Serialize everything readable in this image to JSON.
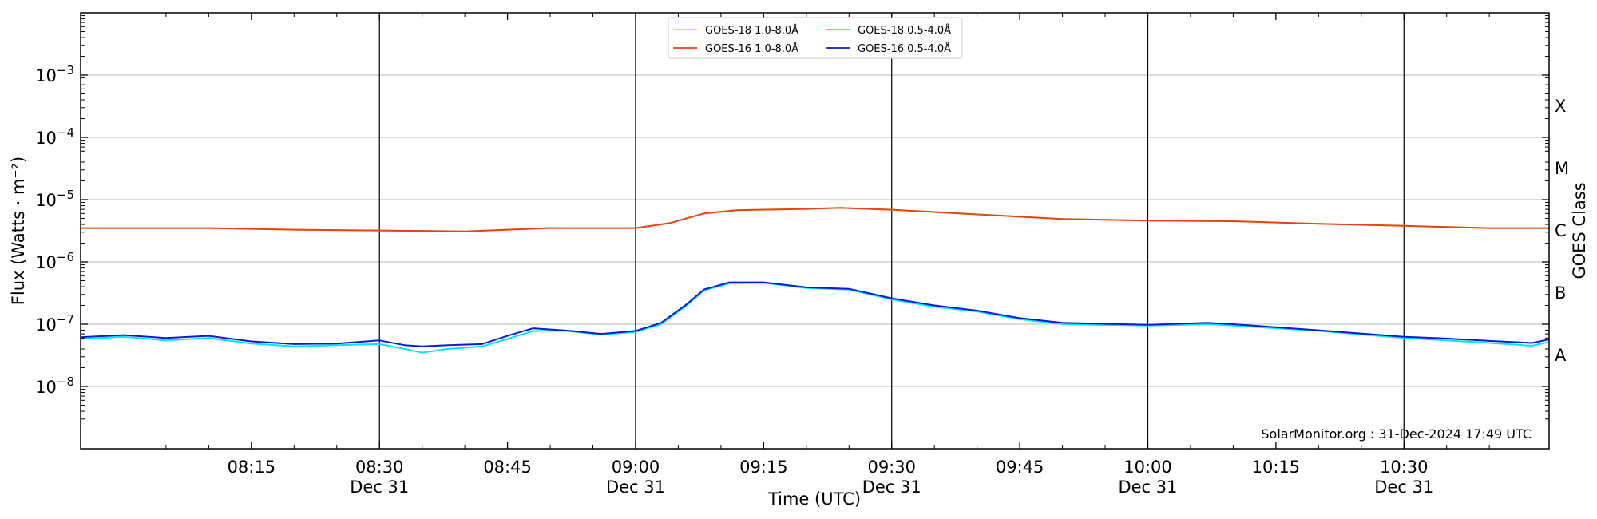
{
  "chart_data": {
    "type": "line",
    "title": "",
    "xlabel": "Time (UTC)",
    "ylabel": "Flux (Watts · m⁻²)",
    "y2label": "GOES Class",
    "yscale": "log",
    "ylim": [
      1e-09,
      0.01
    ],
    "xlim": [
      "07:55",
      "10:47"
    ],
    "grid": "horizontal",
    "legend_position": "top-center",
    "watermark": "SolarMonitor.org : 31-Dec-2024 17:49 UTC",
    "y_ticks": [
      {
        "value": 1e-08,
        "base": "10",
        "exp": "−8"
      },
      {
        "value": 1e-07,
        "base": "10",
        "exp": "−7"
      },
      {
        "value": 1e-06,
        "base": "10",
        "exp": "−6"
      },
      {
        "value": 1e-05,
        "base": "10",
        "exp": "−5"
      },
      {
        "value": 0.0001,
        "base": "10",
        "exp": "−4"
      },
      {
        "value": 0.001,
        "base": "10",
        "exp": "−3"
      }
    ],
    "class_labels": [
      {
        "label": "A",
        "value": 3.16e-08
      },
      {
        "label": "B",
        "value": 3.16e-07
      },
      {
        "label": "C",
        "value": 3.16e-06
      },
      {
        "label": "M",
        "value": 3.16e-05
      },
      {
        "label": "X",
        "value": 0.000316
      }
    ],
    "x_ticks": [
      {
        "time": "08:15",
        "label": "08:15",
        "date": ""
      },
      {
        "time": "08:30",
        "label": "08:30",
        "date": "Dec 31"
      },
      {
        "time": "08:45",
        "label": "08:45",
        "date": ""
      },
      {
        "time": "09:00",
        "label": "09:00",
        "date": "Dec 31"
      },
      {
        "time": "09:15",
        "label": "09:15",
        "date": ""
      },
      {
        "time": "09:30",
        "label": "09:30",
        "date": "Dec 31"
      },
      {
        "time": "09:45",
        "label": "09:45",
        "date": ""
      },
      {
        "time": "10:00",
        "label": "10:00",
        "date": "Dec 31"
      },
      {
        "time": "10:15",
        "label": "10:15",
        "date": ""
      },
      {
        "time": "10:30",
        "label": "10:30",
        "date": "Dec 31"
      }
    ],
    "vertical_lines": [
      "08:30",
      "09:00",
      "09:30",
      "10:00",
      "10:30"
    ],
    "series": [
      {
        "name": "GOES-18 1.0-8.0Å",
        "color": "#ffd700",
        "x": [
          "07:55",
          "08:05",
          "08:10",
          "08:20",
          "08:30",
          "08:40",
          "08:50",
          "09:00",
          "09:04",
          "09:08",
          "09:12",
          "09:20",
          "09:24",
          "09:30",
          "09:40",
          "09:50",
          "10:00",
          "10:10",
          "10:20",
          "10:30",
          "10:40",
          "10:47"
        ],
        "values": [
          3.5e-06,
          3.5e-06,
          3.5e-06,
          3.3e-06,
          3.2e-06,
          3.1e-06,
          3.5e-06,
          3.5e-06,
          4.2e-06,
          6e-06,
          6.8e-06,
          7.1e-06,
          7.4e-06,
          6.9e-06,
          5.8e-06,
          4.9e-06,
          4.6e-06,
          4.5e-06,
          4.1e-06,
          3.8e-06,
          3.5e-06,
          3.5e-06
        ]
      },
      {
        "name": "GOES-16 1.0-8.0Å",
        "color": "#e8421c",
        "x": [
          "07:55",
          "08:05",
          "08:10",
          "08:20",
          "08:30",
          "08:40",
          "08:50",
          "09:00",
          "09:04",
          "09:08",
          "09:12",
          "09:20",
          "09:24",
          "09:30",
          "09:40",
          "09:50",
          "10:00",
          "10:10",
          "10:20",
          "10:30",
          "10:40",
          "10:47"
        ],
        "values": [
          3.5e-06,
          3.5e-06,
          3.5e-06,
          3.3e-06,
          3.2e-06,
          3.1e-06,
          3.5e-06,
          3.5e-06,
          4.2e-06,
          6e-06,
          6.8e-06,
          7.1e-06,
          7.4e-06,
          6.9e-06,
          5.8e-06,
          4.9e-06,
          4.6e-06,
          4.5e-06,
          4.1e-06,
          3.8e-06,
          3.5e-06,
          3.5e-06
        ]
      },
      {
        "name": "GOES-18 0.5-4.0Å",
        "color": "#00e5ff",
        "x": [
          "07:55",
          "08:00",
          "08:05",
          "08:10",
          "08:15",
          "08:20",
          "08:25",
          "08:30",
          "08:33",
          "08:35",
          "08:38",
          "08:42",
          "08:45",
          "08:48",
          "08:52",
          "08:56",
          "09:00",
          "09:03",
          "09:06",
          "09:08",
          "09:11",
          "09:15",
          "09:20",
          "09:25",
          "09:30",
          "09:35",
          "09:40",
          "09:45",
          "09:50",
          "10:00",
          "10:07",
          "10:10",
          "10:20",
          "10:30",
          "10:35",
          "10:40",
          "10:45",
          "10:47"
        ],
        "values": [
          5.8e-08,
          6.3e-08,
          5.5e-08,
          6e-08,
          4.9e-08,
          4.4e-08,
          4.6e-08,
          4.8e-08,
          4e-08,
          3.5e-08,
          4e-08,
          4.4e-08,
          5.8e-08,
          7.8e-08,
          7.8e-08,
          6.8e-08,
          7.5e-08,
          1e-07,
          2e-07,
          3.5e-07,
          4.5e-07,
          4.6e-07,
          3.8e-07,
          3.6e-07,
          2.5e-07,
          1.9e-07,
          1.6e-07,
          1.2e-07,
          1e-07,
          9.5e-08,
          1e-07,
          9.5e-08,
          7.8e-08,
          6e-08,
          5.5e-08,
          5e-08,
          4.5e-08,
          5.2e-08
        ]
      },
      {
        "name": "GOES-16 0.5-4.0Å",
        "color": "#0a1cd6",
        "x": [
          "07:55",
          "08:00",
          "08:05",
          "08:10",
          "08:15",
          "08:20",
          "08:25",
          "08:30",
          "08:33",
          "08:35",
          "08:38",
          "08:42",
          "08:45",
          "08:48",
          "08:52",
          "08:56",
          "09:00",
          "09:03",
          "09:06",
          "09:08",
          "09:11",
          "09:15",
          "09:20",
          "09:25",
          "09:30",
          "09:35",
          "09:40",
          "09:45",
          "09:50",
          "10:00",
          "10:07",
          "10:10",
          "10:20",
          "10:30",
          "10:35",
          "10:40",
          "10:45",
          "10:47"
        ],
        "values": [
          6.2e-08,
          6.7e-08,
          6e-08,
          6.5e-08,
          5.3e-08,
          4.8e-08,
          4.9e-08,
          5.5e-08,
          4.6e-08,
          4.4e-08,
          4.6e-08,
          4.8e-08,
          6.5e-08,
          8.6e-08,
          7.9e-08,
          7e-08,
          7.8e-08,
          1.05e-07,
          2.1e-07,
          3.6e-07,
          4.7e-07,
          4.7e-07,
          3.9e-07,
          3.7e-07,
          2.6e-07,
          2e-07,
          1.65e-07,
          1.25e-07,
          1.05e-07,
          9.8e-08,
          1.05e-07,
          1e-07,
          8e-08,
          6.3e-08,
          5.9e-08,
          5.4e-08,
          5e-08,
          5.7e-08
        ]
      }
    ]
  }
}
